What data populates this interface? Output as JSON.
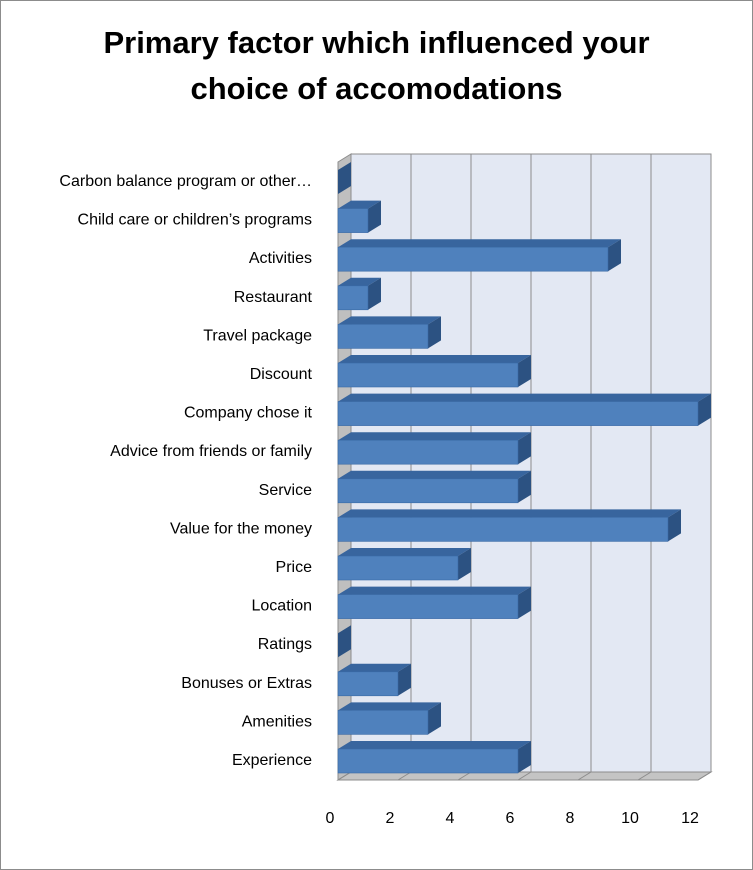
{
  "chart_data": {
    "type": "bar",
    "orientation": "horizontal",
    "style": "3d-clustered-bar",
    "title_lines": [
      "Primary factor which influenced your",
      "choice of accomodations"
    ],
    "categories": [
      "Carbon balance program or other…",
      "Child care or children’s programs",
      "Activities",
      "Restaurant",
      "Travel package",
      "Discount",
      "Company chose it",
      "Advice from friends or family",
      "Service",
      "Value for the money",
      "Price",
      "Location",
      "Ratings",
      "Bonuses or Extras",
      "Amenities",
      "Experience"
    ],
    "values": [
      0,
      1,
      9,
      1,
      3,
      6,
      12,
      6,
      6,
      11,
      4,
      6,
      0,
      2,
      3,
      6
    ],
    "xlim": [
      0,
      12
    ],
    "xticks": [
      0,
      2,
      4,
      6,
      8,
      10,
      12
    ],
    "grid": true,
    "legend": "none",
    "colors": {
      "bar_front": "#4f81bd",
      "bar_top": "#38659e",
      "bar_side": "#2c5282",
      "wall": "#e3e8f3",
      "side_wall": "#bfbfbf",
      "floor": "#c4c4c4",
      "grid": "#8c8c8c"
    }
  }
}
